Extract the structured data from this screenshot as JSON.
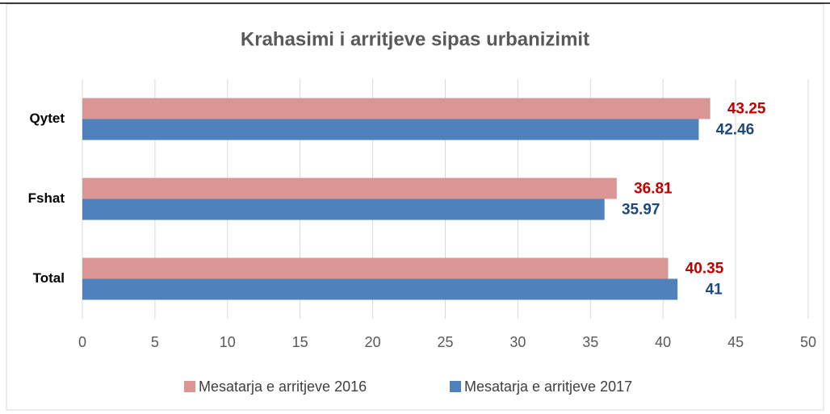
{
  "chart_data": {
    "type": "bar",
    "orientation": "horizontal",
    "title": "Krahasimi i arritjeve sipas urbanizimit",
    "categories": [
      "Qytet",
      "Fshat",
      "Total"
    ],
    "series": [
      {
        "name": "Mesatarja e arritjeve 2016",
        "color": "#d99694",
        "label_color": "#c00000",
        "values": [
          43.25,
          36.81,
          40.35
        ]
      },
      {
        "name": "Mesatarja e arritjeve 2017",
        "color": "#4f81bd",
        "label_color": "#1f497d",
        "values": [
          42.46,
          35.97,
          41
        ]
      }
    ],
    "xlim": [
      0,
      50
    ],
    "xticks": [
      0,
      5,
      10,
      15,
      20,
      25,
      30,
      35,
      40,
      45,
      50
    ],
    "grid": true,
    "legend": "bottom"
  }
}
